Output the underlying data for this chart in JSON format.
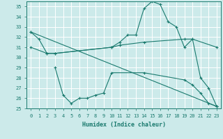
{
  "bg_color": "#cceaea",
  "grid_color": "#ffffff",
  "line_color": "#1a7a6e",
  "xlabel": "Humidex (Indice chaleur)",
  "ylim": [
    25,
    35.5
  ],
  "xlim": [
    -0.5,
    23.5
  ],
  "yticks": [
    25,
    26,
    27,
    28,
    29,
    30,
    31,
    32,
    33,
    34,
    35
  ],
  "xticks": [
    0,
    1,
    2,
    3,
    4,
    5,
    6,
    7,
    8,
    9,
    10,
    11,
    12,
    13,
    14,
    15,
    16,
    17,
    18,
    19,
    20,
    21,
    22,
    23
  ],
  "series": [
    {
      "x": [
        0,
        1,
        2,
        3,
        10,
        11,
        12,
        13,
        14,
        15,
        16,
        17,
        18,
        19,
        20,
        21,
        22,
        23
      ],
      "y": [
        32.5,
        31.8,
        30.4,
        30.4,
        31.0,
        31.5,
        32.2,
        32.2,
        34.8,
        35.5,
        35.2,
        33.5,
        33.0,
        31.0,
        31.8,
        28.0,
        27.0,
        25.2
      ]
    },
    {
      "x": [
        0,
        2,
        3,
        10,
        11,
        14,
        19,
        20,
        23
      ],
      "y": [
        31.0,
        30.4,
        30.4,
        31.0,
        31.2,
        31.5,
        31.8,
        31.8,
        31.0
      ]
    },
    {
      "x": [
        3,
        4,
        5,
        6,
        7,
        8,
        9,
        10,
        14,
        19,
        20,
        21,
        22,
        23
      ],
      "y": [
        29.0,
        26.3,
        25.5,
        26.0,
        26.0,
        26.3,
        26.5,
        28.5,
        28.5,
        27.8,
        27.3,
        26.5,
        25.5,
        25.2
      ]
    },
    {
      "x": [
        0,
        23
      ],
      "y": [
        32.5,
        25.2
      ]
    }
  ]
}
